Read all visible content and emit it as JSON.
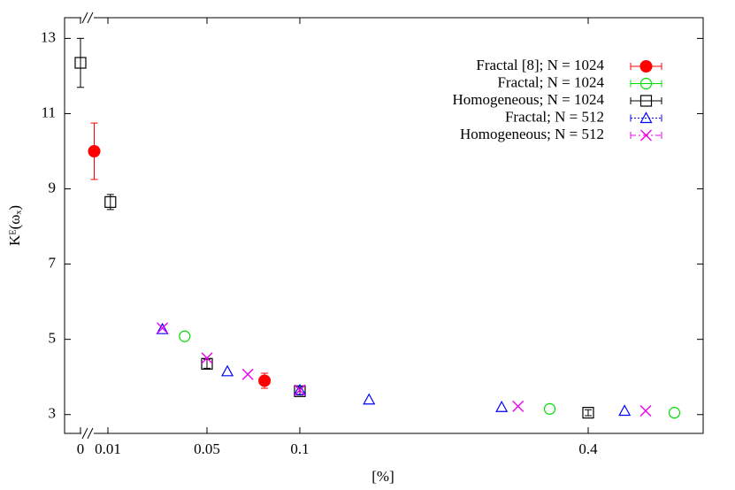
{
  "chart_data": {
    "type": "scatter",
    "x_label": "[%]",
    "y_label": "Kᴱ(ωₓ)",
    "xlim": [
      -0.006,
      0.52
    ],
    "ylim": [
      2.5,
      13.55
    ],
    "xticks": [
      0,
      0.01,
      0.05,
      0.1,
      0.4
    ],
    "yticks": [
      3,
      5,
      7,
      9,
      11,
      13
    ],
    "legend": "upper right",
    "series": [
      {
        "name": "Fractal [8]; N = 1024",
        "color": "#ff0000",
        "marker": "filled-circle",
        "linestyle": "solid",
        "x": [
          0.005,
          0.081
        ],
        "values": [
          10.0,
          3.9
        ],
        "errors": [
          0.75,
          0.2
        ]
      },
      {
        "name": "Fractal; N = 1024",
        "color": "#00dd00",
        "marker": "circle",
        "linestyle": "solid",
        "x": [
          0.041,
          0.36,
          0.49
        ],
        "values": [
          5.08,
          3.15,
          3.05
        ]
      },
      {
        "name": "Homogeneous; N = 1024",
        "color": "#000000",
        "marker": "square",
        "linestyle": "solid",
        "x": [
          0,
          0.011,
          0.05,
          0.1,
          0.4
        ],
        "values": [
          12.35,
          8.65,
          4.35,
          3.62,
          3.05
        ],
        "errors": [
          0.65,
          0.2,
          0.12,
          0.1,
          0.08
        ]
      },
      {
        "name": "Fractal; N = 512",
        "color": "#0000ff",
        "marker": "triangle",
        "linestyle": "dotted",
        "x": [
          0.032,
          0.061,
          0.1,
          0.172,
          0.31,
          0.438
        ],
        "values": [
          5.27,
          4.15,
          3.65,
          3.4,
          3.2,
          3.1
        ]
      },
      {
        "name": "Homogeneous; N = 512",
        "color": "#ee00ee",
        "marker": "cross",
        "linestyle": "dashdot",
        "x": [
          0.032,
          0.05,
          0.072,
          0.1,
          0.327,
          0.46
        ],
        "values": [
          5.3,
          4.5,
          4.07,
          3.65,
          3.22,
          3.1
        ]
      }
    ]
  }
}
